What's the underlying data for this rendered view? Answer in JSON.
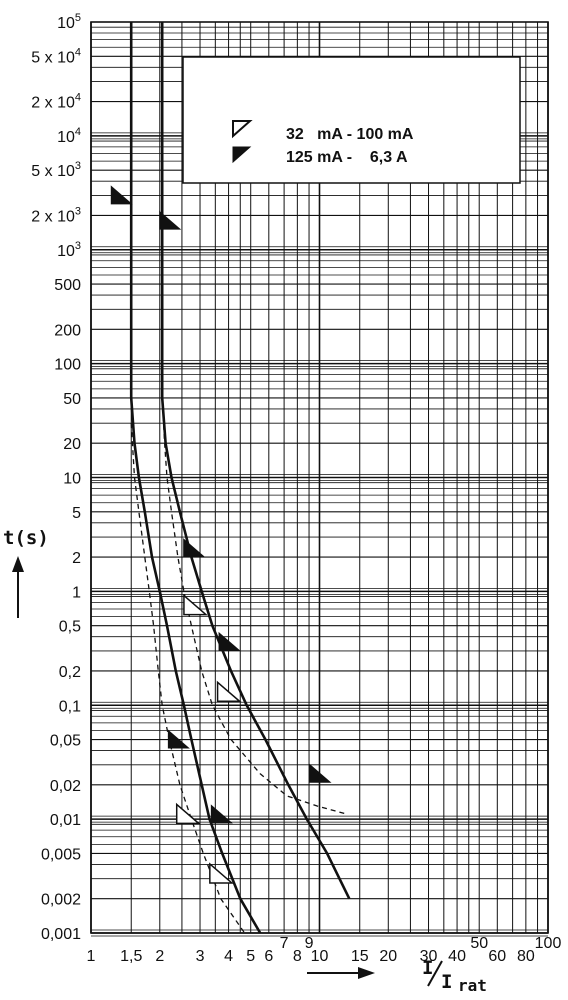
{
  "chart_data": {
    "type": "line",
    "title": "",
    "ylabel": "t(s)",
    "xlabel_main": "I",
    "xlabel_den": "I",
    "xlabel_sub": "rat",
    "x_scale": "log",
    "y_scale": "log",
    "xlim": [
      1,
      100
    ],
    "ylim": [
      0.001,
      100000
    ],
    "grid": true,
    "legend_position": "top-right",
    "x_ticks": [
      {
        "v": 1,
        "label": "1",
        "row": 0
      },
      {
        "v": 1.5,
        "label": "1,5",
        "row": 0
      },
      {
        "v": 2,
        "label": "2",
        "row": 0
      },
      {
        "v": 3,
        "label": "3",
        "row": 0
      },
      {
        "v": 4,
        "label": "4",
        "row": 0
      },
      {
        "v": 5,
        "label": "5",
        "row": 0
      },
      {
        "v": 6,
        "label": "6",
        "row": 0
      },
      {
        "v": 7,
        "label": "7",
        "row": 1
      },
      {
        "v": 8,
        "label": "8",
        "row": 0
      },
      {
        "v": 9,
        "label": "9",
        "row": 1
      },
      {
        "v": 10,
        "label": "10",
        "row": 0
      },
      {
        "v": 15,
        "label": "15",
        "row": 0
      },
      {
        "v": 20,
        "label": "20",
        "row": 0
      },
      {
        "v": 30,
        "label": "30",
        "row": 0
      },
      {
        "v": 40,
        "label": "40",
        "row": 0
      },
      {
        "v": 50,
        "label": "50",
        "row": 1
      },
      {
        "v": 60,
        "label": "60",
        "row": 0
      },
      {
        "v": 80,
        "label": "80",
        "row": 0
      },
      {
        "v": 100,
        "label": "100",
        "row": 1
      }
    ],
    "y_ticks": [
      {
        "v": 100000,
        "base": "10",
        "exp": "5"
      },
      {
        "v": 50000,
        "base": "5 x 10",
        "exp": "4"
      },
      {
        "v": 20000,
        "base": "2 x 10",
        "exp": "4"
      },
      {
        "v": 10000,
        "base": "10",
        "exp": "4"
      },
      {
        "v": 5000,
        "base": "5 x 10",
        "exp": "3"
      },
      {
        "v": 2000,
        "base": "2 x 10",
        "exp": "3"
      },
      {
        "v": 1000,
        "base": "10",
        "exp": "3"
      },
      {
        "v": 500,
        "base": "500",
        "exp": ""
      },
      {
        "v": 200,
        "base": "200",
        "exp": ""
      },
      {
        "v": 100,
        "base": "100",
        "exp": ""
      },
      {
        "v": 50,
        "base": "50",
        "exp": ""
      },
      {
        "v": 20,
        "base": "20",
        "exp": ""
      },
      {
        "v": 10,
        "base": "10",
        "exp": ""
      },
      {
        "v": 5,
        "base": "5",
        "exp": ""
      },
      {
        "v": 2,
        "base": "2",
        "exp": ""
      },
      {
        "v": 1,
        "base": "1",
        "exp": ""
      },
      {
        "v": 0.5,
        "base": "0,5",
        "exp": ""
      },
      {
        "v": 0.2,
        "base": "0,2",
        "exp": ""
      },
      {
        "v": 0.1,
        "base": "0,1",
        "exp": ""
      },
      {
        "v": 0.05,
        "base": "0,05",
        "exp": ""
      },
      {
        "v": 0.02,
        "base": "0,02",
        "exp": ""
      },
      {
        "v": 0.01,
        "base": "0,01",
        "exp": ""
      },
      {
        "v": 0.005,
        "base": "0,005",
        "exp": ""
      },
      {
        "v": 0.002,
        "base": "0,002",
        "exp": ""
      },
      {
        "v": 0.001,
        "base": "0,001",
        "exp": ""
      }
    ],
    "legend": [
      {
        "label": "32   mA - 100 mA",
        "marker": "open-triangle"
      },
      {
        "label": "125 mA -    6,3 A",
        "marker": "filled-triangle"
      }
    ],
    "series": [
      {
        "style": "solid",
        "points": [
          [
            1.5,
            100000
          ],
          [
            1.5,
            2000
          ],
          [
            1.5,
            100
          ],
          [
            1.5,
            50
          ],
          [
            1.55,
            20
          ],
          [
            1.62,
            10
          ],
          [
            1.72,
            5
          ],
          [
            1.85,
            2
          ],
          [
            2.0,
            1
          ],
          [
            2.15,
            0.5
          ],
          [
            2.35,
            0.2
          ],
          [
            2.55,
            0.1
          ],
          [
            2.75,
            0.05
          ],
          [
            3.05,
            0.02
          ],
          [
            3.3,
            0.01
          ],
          [
            3.75,
            0.005
          ],
          [
            4.5,
            0.002
          ],
          [
            5.5,
            0.001
          ],
          [
            6.8,
            0.0005
          ]
        ]
      },
      {
        "style": "solid",
        "points": [
          [
            2.05,
            100000
          ],
          [
            2.05,
            2000
          ],
          [
            2.05,
            100
          ],
          [
            2.05,
            50
          ],
          [
            2.12,
            20
          ],
          [
            2.25,
            10
          ],
          [
            2.45,
            5
          ],
          [
            2.75,
            2
          ],
          [
            3.05,
            1
          ],
          [
            3.4,
            0.5
          ],
          [
            4.1,
            0.2
          ],
          [
            4.8,
            0.1
          ],
          [
            5.8,
            0.05
          ],
          [
            7.3,
            0.02
          ],
          [
            8.8,
            0.01
          ],
          [
            10.8,
            0.005
          ],
          [
            13.5,
            0.002
          ]
        ]
      },
      {
        "style": "dashed",
        "points": [
          [
            1.5,
            30
          ],
          [
            1.55,
            10
          ],
          [
            1.62,
            5
          ],
          [
            1.72,
            2
          ],
          [
            1.8,
            1
          ],
          [
            1.88,
            0.5
          ],
          [
            1.97,
            0.2
          ],
          [
            2.05,
            0.1
          ],
          [
            2.2,
            0.05
          ],
          [
            2.45,
            0.02
          ],
          [
            2.75,
            0.01
          ],
          [
            3.1,
            0.005
          ],
          [
            3.7,
            0.002
          ],
          [
            4.7,
            0.001
          ]
        ]
      },
      {
        "style": "dashed",
        "points": [
          [
            2.05,
            50
          ],
          [
            2.1,
            20
          ],
          [
            2.15,
            10
          ],
          [
            2.25,
            5
          ],
          [
            2.4,
            2
          ],
          [
            2.55,
            1
          ],
          [
            2.75,
            0.5
          ],
          [
            3.05,
            0.2
          ],
          [
            3.4,
            0.1
          ],
          [
            4.1,
            0.05
          ],
          [
            5.5,
            0.025
          ],
          [
            7.2,
            0.016
          ],
          [
            9.8,
            0.013
          ],
          [
            13.3,
            0.011
          ]
        ]
      }
    ],
    "markers": [
      {
        "type": "filled",
        "x": 1.35,
        "y": 3000
      },
      {
        "type": "filled",
        "x": 2.2,
        "y": 1800
      },
      {
        "type": "filled",
        "x": 2.8,
        "y": 2.4
      },
      {
        "type": "filled",
        "x": 4.0,
        "y": 0.36
      },
      {
        "type": "filled",
        "x": 2.4,
        "y": 0.05
      },
      {
        "type": "filled",
        "x": 3.7,
        "y": 0.011
      },
      {
        "type": "filled",
        "x": 10.0,
        "y": 0.025
      },
      {
        "type": "open",
        "x": 2.85,
        "y": 0.75
      },
      {
        "type": "open",
        "x": 4.0,
        "y": 0.13
      },
      {
        "type": "open",
        "x": 2.65,
        "y": 0.011
      },
      {
        "type": "open",
        "x": 3.7,
        "y": 0.0033
      }
    ]
  }
}
